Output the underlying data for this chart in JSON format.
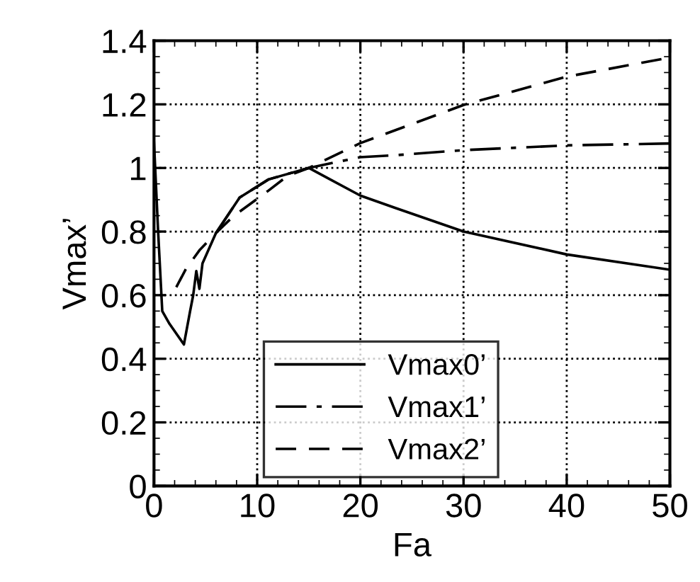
{
  "chart_data": {
    "type": "line",
    "xlabel": "Fa",
    "ylabel": "Vmax’",
    "xlim": [
      0,
      50
    ],
    "ylim": [
      0,
      1.4
    ],
    "xticks": [
      0,
      10,
      20,
      30,
      40,
      50
    ],
    "yticks": [
      0,
      0.2,
      0.4,
      0.6,
      0.8,
      1,
      1.2,
      1.4
    ],
    "grid": true,
    "legend": "bottom",
    "marker": "none",
    "series": [
      {
        "name": "Vmax0’",
        "color": "#000000",
        "line_style": "solid",
        "x": [
          0,
          0.4,
          0.8,
          1.5,
          2.9,
          3.5,
          3.8,
          4.1,
          4.4,
          4.7,
          6.0,
          8.3,
          11.1,
          15,
          20,
          23.4,
          30,
          40,
          50
        ],
        "values": [
          1.08,
          0.8,
          0.55,
          0.51,
          0.445,
          0.55,
          0.6,
          0.676,
          0.62,
          0.7,
          0.795,
          0.907,
          0.964,
          1.0,
          0.913,
          0.874,
          0.8,
          0.728,
          0.68
        ]
      },
      {
        "name": "Vmax1’",
        "color": "#000000",
        "line_style": "dashdot",
        "x": [
          6.0,
          8.3,
          11.1,
          15,
          20,
          23.4,
          30,
          40,
          50
        ],
        "values": [
          0.795,
          0.907,
          0.964,
          1.0,
          1.034,
          1.04,
          1.056,
          1.071,
          1.077
        ]
      },
      {
        "name": "Vmax2’",
        "color": "#000000",
        "line_style": "dashed",
        "x": [
          2.16,
          3.1,
          4.45,
          6.0,
          7.65,
          11.1,
          12.9,
          15,
          20,
          30,
          40,
          50
        ],
        "values": [
          0.625,
          0.683,
          0.743,
          0.795,
          0.847,
          0.929,
          0.974,
          1.0,
          1.078,
          1.198,
          1.287,
          1.347
        ]
      }
    ]
  }
}
